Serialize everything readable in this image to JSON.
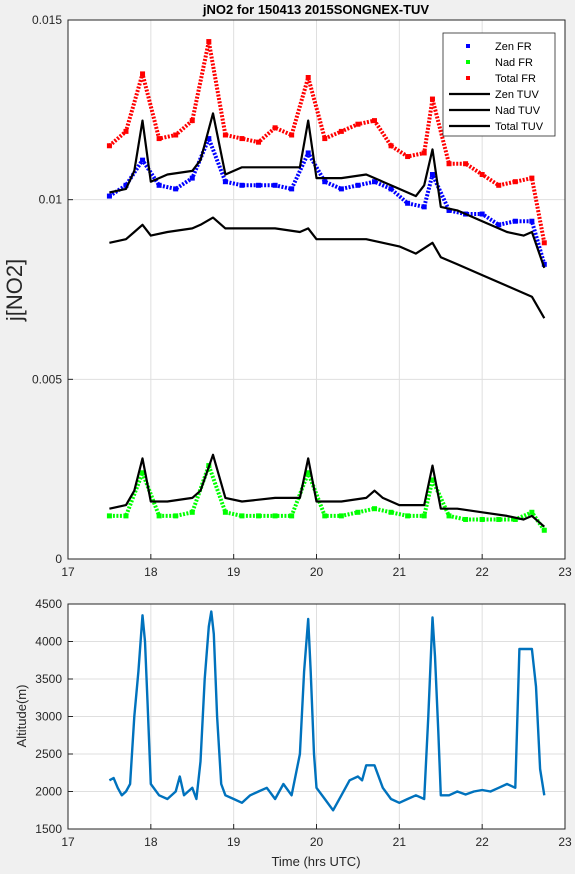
{
  "chart_data": [
    {
      "type": "scatter",
      "title": "jNO2 for 150413 2015SONGNEX-TUV",
      "xlabel": "",
      "ylabel": "j[NO2]",
      "xlim": [
        17,
        23
      ],
      "ylim": [
        0,
        0.015
      ],
      "x_ticks": [
        "17",
        "18",
        "19",
        "20",
        "21",
        "22",
        "23"
      ],
      "y_ticks": [
        "0",
        "0.005",
        "0.01",
        "0.015"
      ],
      "grid": true,
      "legend_position": "top-right",
      "series": [
        {
          "name": "Zen FR",
          "kind": "markers",
          "color": "#0000ff",
          "x": [
            17.5,
            17.7,
            17.9,
            18.1,
            18.3,
            18.5,
            18.7,
            18.9,
            19.1,
            19.3,
            19.5,
            19.7,
            19.9,
            20.1,
            20.3,
            20.5,
            20.7,
            20.9,
            21.1,
            21.3,
            21.4,
            21.6,
            21.8,
            22.0,
            22.2,
            22.4,
            22.6,
            22.75
          ],
          "y": [
            0.0101,
            0.0104,
            0.0111,
            0.0104,
            0.0103,
            0.0106,
            0.0117,
            0.0105,
            0.0104,
            0.0104,
            0.0104,
            0.0103,
            0.0113,
            0.0105,
            0.0103,
            0.0104,
            0.0105,
            0.0103,
            0.0099,
            0.0098,
            0.0107,
            0.0097,
            0.0096,
            0.0096,
            0.0093,
            0.0094,
            0.0094,
            0.0082
          ]
        },
        {
          "name": "Nad FR",
          "kind": "markers",
          "color": "#00ff00",
          "x": [
            17.5,
            17.7,
            17.9,
            18.1,
            18.3,
            18.5,
            18.7,
            18.9,
            19.1,
            19.3,
            19.5,
            19.7,
            19.9,
            20.1,
            20.3,
            20.5,
            20.7,
            20.9,
            21.1,
            21.3,
            21.4,
            21.6,
            21.8,
            22.0,
            22.2,
            22.4,
            22.6,
            22.75
          ],
          "y": [
            0.0012,
            0.0012,
            0.0024,
            0.0012,
            0.0012,
            0.0013,
            0.0026,
            0.0013,
            0.0012,
            0.0012,
            0.0012,
            0.0012,
            0.0024,
            0.0012,
            0.0012,
            0.0013,
            0.0014,
            0.0013,
            0.0012,
            0.0012,
            0.0022,
            0.0012,
            0.0011,
            0.0011,
            0.0011,
            0.0011,
            0.0013,
            0.0008
          ]
        },
        {
          "name": "Total FR",
          "kind": "markers",
          "color": "#ff0000",
          "x": [
            17.5,
            17.7,
            17.9,
            18.1,
            18.3,
            18.5,
            18.7,
            18.9,
            19.1,
            19.3,
            19.5,
            19.7,
            19.9,
            20.1,
            20.3,
            20.5,
            20.7,
            20.9,
            21.1,
            21.3,
            21.4,
            21.6,
            21.8,
            22.0,
            22.2,
            22.4,
            22.6,
            22.75
          ],
          "y": [
            0.0115,
            0.0119,
            0.0135,
            0.0117,
            0.0118,
            0.0122,
            0.0144,
            0.0118,
            0.0117,
            0.0116,
            0.012,
            0.0118,
            0.0134,
            0.0117,
            0.0119,
            0.0121,
            0.0122,
            0.0115,
            0.0112,
            0.0113,
            0.0128,
            0.011,
            0.011,
            0.0107,
            0.0104,
            0.0105,
            0.0106,
            0.0088
          ]
        },
        {
          "name": "Zen TUV",
          "kind": "line",
          "color": "#000000",
          "x": [
            17.5,
            17.7,
            17.8,
            17.9,
            18.0,
            18.2,
            18.5,
            18.6,
            18.75,
            18.9,
            19.1,
            19.5,
            19.8,
            19.9,
            20.0,
            20.3,
            20.6,
            20.8,
            21.0,
            21.2,
            21.3,
            21.4,
            21.5,
            21.7,
            22.0,
            22.3,
            22.5,
            22.6,
            22.75
          ],
          "y": [
            0.0102,
            0.0103,
            0.0108,
            0.0122,
            0.0105,
            0.0107,
            0.0108,
            0.0111,
            0.0124,
            0.0107,
            0.0109,
            0.0109,
            0.0109,
            0.0122,
            0.0106,
            0.0106,
            0.0107,
            0.0105,
            0.0103,
            0.0101,
            0.0104,
            0.0114,
            0.0098,
            0.0097,
            0.0094,
            0.0091,
            0.009,
            0.0091,
            0.0081
          ]
        },
        {
          "name": "Nad TUV",
          "kind": "line",
          "color": "#000000",
          "x": [
            17.5,
            17.7,
            17.8,
            17.9,
            18.0,
            18.2,
            18.5,
            18.6,
            18.75,
            18.9,
            19.1,
            19.5,
            19.8,
            19.9,
            20.0,
            20.3,
            20.6,
            20.7,
            20.8,
            21.0,
            21.3,
            21.4,
            21.5,
            21.7,
            22.0,
            22.3,
            22.5,
            22.6,
            22.75
          ],
          "y": [
            0.0014,
            0.0015,
            0.0019,
            0.0028,
            0.0016,
            0.0016,
            0.0017,
            0.0019,
            0.0029,
            0.0017,
            0.0016,
            0.0017,
            0.0017,
            0.0028,
            0.0016,
            0.0016,
            0.0017,
            0.0019,
            0.0017,
            0.0015,
            0.0015,
            0.0026,
            0.0014,
            0.0014,
            0.0013,
            0.0012,
            0.0011,
            0.0012,
            0.0009
          ]
        },
        {
          "name": "Total TUV",
          "kind": "line",
          "color": "#000000",
          "x": [
            17.5,
            17.7,
            17.8,
            17.9,
            18.0,
            18.2,
            18.5,
            18.6,
            18.75,
            18.9,
            19.1,
            19.5,
            19.8,
            19.9,
            20.0,
            20.3,
            20.6,
            20.8,
            21.0,
            21.2,
            21.4,
            21.5,
            21.7,
            22.0,
            22.3,
            22.5,
            22.6,
            22.75
          ],
          "y": [
            0.0088,
            0.0089,
            0.0091,
            0.0093,
            0.009,
            0.0091,
            0.0092,
            0.0093,
            0.0095,
            0.0092,
            0.0092,
            0.0092,
            0.0091,
            0.0092,
            0.0089,
            0.0089,
            0.0089,
            0.0088,
            0.0087,
            0.0085,
            0.0088,
            0.0084,
            0.0082,
            0.0079,
            0.0076,
            0.0074,
            0.0073,
            0.0067
          ]
        }
      ]
    },
    {
      "type": "line",
      "title": "",
      "xlabel": "Time (hrs UTC)",
      "ylabel": "Altitude(m)",
      "xlim": [
        17,
        23
      ],
      "ylim": [
        1500,
        4500
      ],
      "x_ticks": [
        "17",
        "18",
        "19",
        "20",
        "21",
        "22",
        "23"
      ],
      "y_ticks": [
        "1500",
        "2000",
        "2500",
        "3000",
        "3500",
        "4000",
        "4500"
      ],
      "grid": true,
      "series": [
        {
          "name": "",
          "color": "#0072bd",
          "x": [
            17.5,
            17.55,
            17.6,
            17.65,
            17.7,
            17.75,
            17.8,
            17.85,
            17.9,
            17.93,
            17.96,
            18.0,
            18.1,
            18.2,
            18.3,
            18.35,
            18.4,
            18.45,
            18.5,
            18.55,
            18.6,
            18.65,
            18.7,
            18.73,
            18.76,
            18.8,
            18.85,
            18.9,
            19.0,
            19.1,
            19.2,
            19.3,
            19.4,
            19.5,
            19.6,
            19.7,
            19.8,
            19.85,
            19.9,
            19.93,
            19.97,
            20.0,
            20.1,
            20.2,
            20.3,
            20.4,
            20.5,
            20.55,
            20.6,
            20.7,
            20.8,
            20.9,
            21.0,
            21.1,
            21.2,
            21.3,
            21.35,
            21.4,
            21.43,
            21.47,
            21.5,
            21.6,
            21.7,
            21.8,
            21.9,
            22.0,
            22.1,
            22.2,
            22.3,
            22.4,
            22.45,
            22.5,
            22.55,
            22.6,
            22.65,
            22.7,
            22.75
          ],
          "y": [
            2150,
            2180,
            2050,
            1950,
            2000,
            2100,
            3000,
            3600,
            4350,
            4000,
            3200,
            2100,
            1950,
            1900,
            2000,
            2200,
            1950,
            2000,
            2050,
            1900,
            2400,
            3500,
            4200,
            4400,
            4100,
            3000,
            2100,
            1950,
            1900,
            1850,
            1950,
            2000,
            2050,
            1900,
            2100,
            1950,
            2500,
            3600,
            4300,
            3600,
            2500,
            2050,
            1900,
            1750,
            1950,
            2150,
            2200,
            2150,
            2350,
            2350,
            2050,
            1900,
            1850,
            1900,
            1950,
            1900,
            3000,
            4320,
            3800,
            2800,
            1950,
            1950,
            2000,
            1960,
            2000,
            2020,
            2000,
            2050,
            2100,
            2050,
            3900,
            3900,
            3900,
            3900,
            3400,
            2300,
            1950
          ]
        }
      ]
    }
  ]
}
